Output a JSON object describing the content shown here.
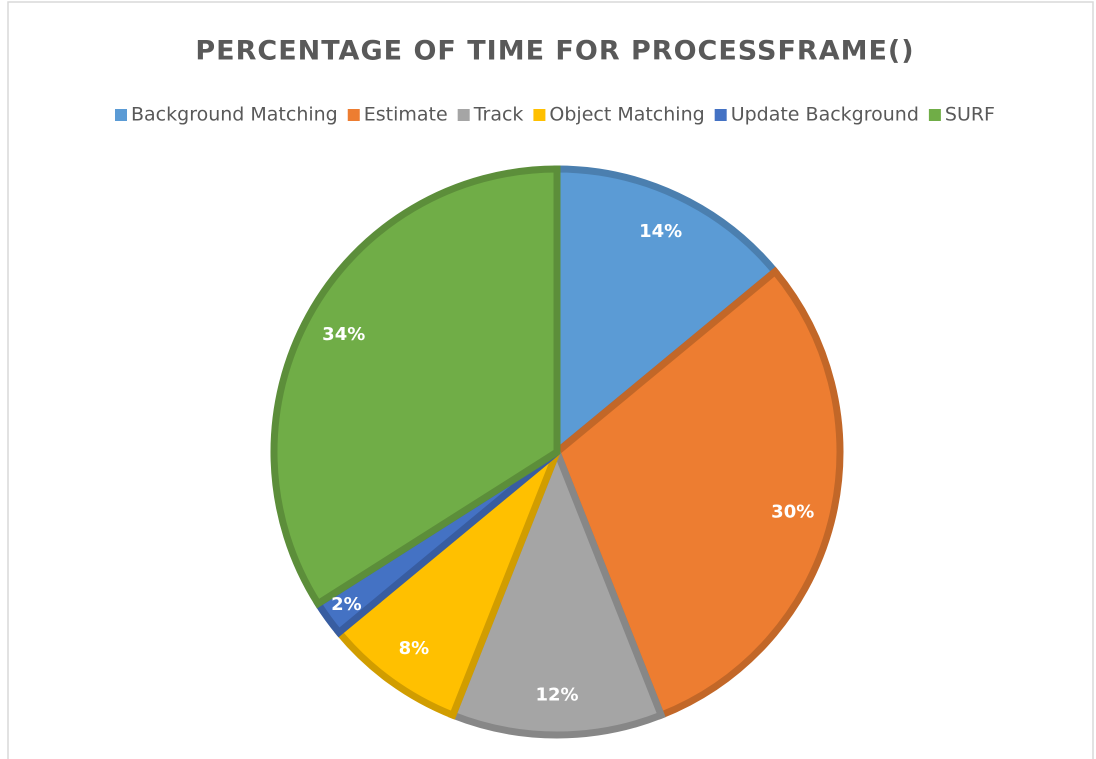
{
  "chart_data": {
    "type": "pie",
    "title": "PERCENTAGE OF TIME FOR PROCESSFRAME()",
    "categories": [
      "Background Matching",
      "Estimate",
      "Track",
      "Object Matching",
      "Update Background",
      "SURF"
    ],
    "values": [
      14,
      30,
      12,
      8,
      2,
      34
    ],
    "value_labels": [
      "14%",
      "30%",
      "12%",
      "8%",
      "2%",
      "34%"
    ],
    "colors": [
      "#5b9bd5",
      "#ed7d31",
      "#a5a5a5",
      "#ffc000",
      "#4472c4",
      "#70ad47"
    ],
    "legend": "top"
  }
}
